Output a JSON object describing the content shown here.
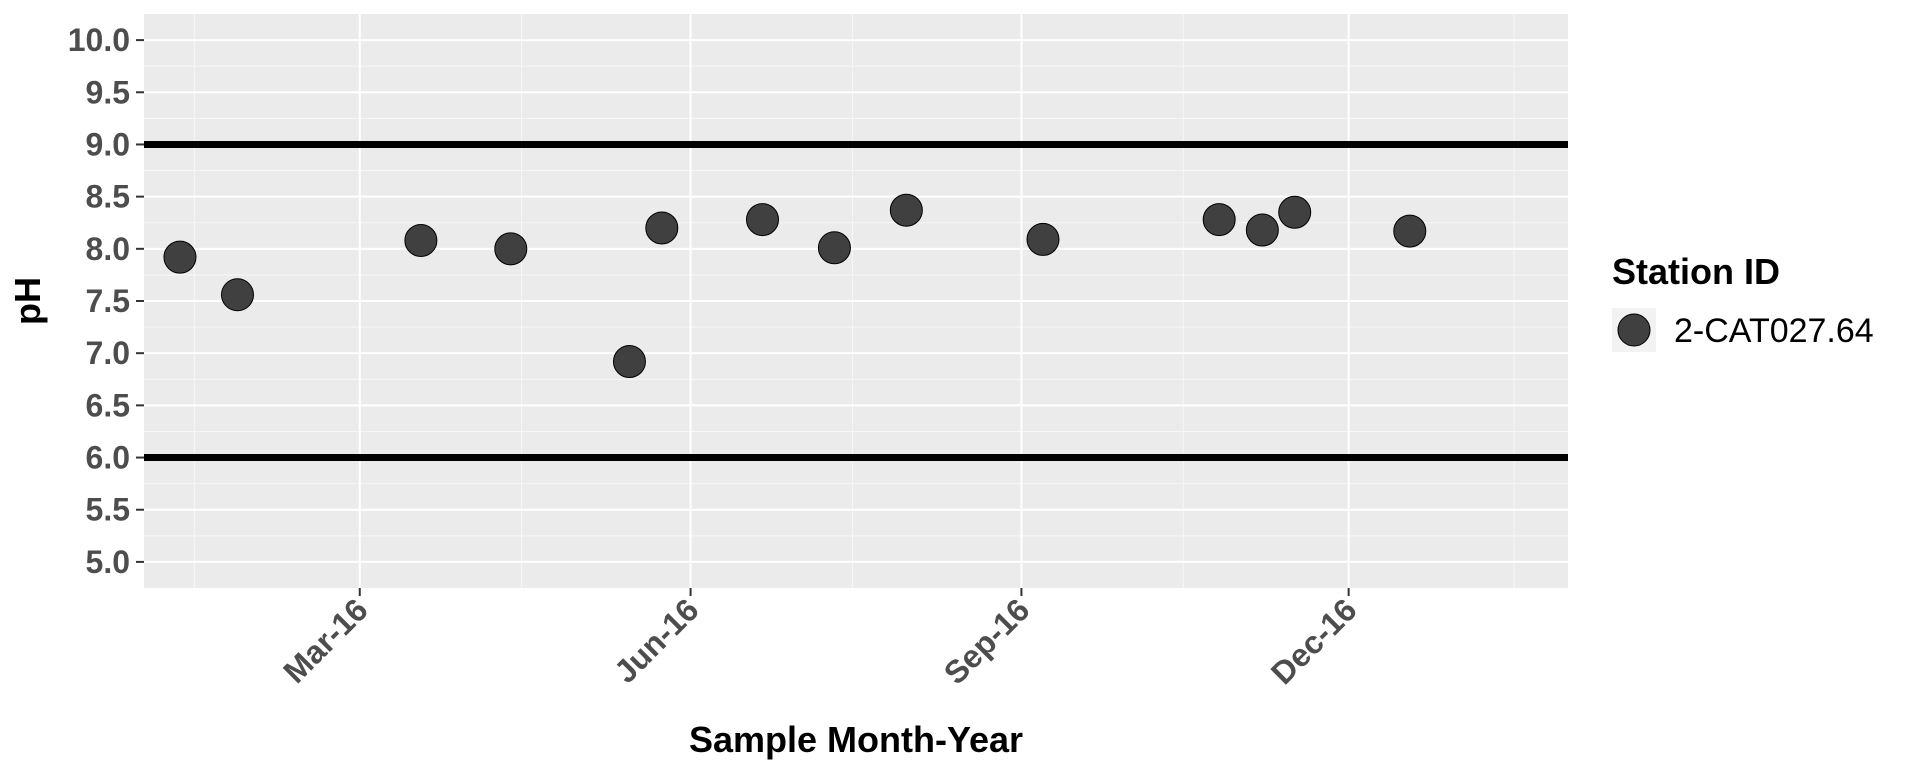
{
  "chart_data": {
    "type": "scatter",
    "xlabel": "Sample Month-Year",
    "ylabel": "pH",
    "x_axis_type": "date",
    "xlim": [
      "2016-01-01",
      "2017-01-31"
    ],
    "ylim": [
      4.75,
      10.25
    ],
    "x_ticks": [
      {
        "date": "2016-03-01",
        "label": "Mar-16"
      },
      {
        "date": "2016-06-01",
        "label": "Jun-16"
      },
      {
        "date": "2016-09-01",
        "label": "Sep-16"
      },
      {
        "date": "2016-12-01",
        "label": "Dec-16"
      }
    ],
    "x_minor_gridlines": [
      "2016-01-15",
      "2016-04-15",
      "2016-07-16",
      "2016-10-16",
      "2017-01-16"
    ],
    "y_ticks": [
      5.0,
      5.5,
      6.0,
      6.5,
      7.0,
      7.5,
      8.0,
      8.5,
      9.0,
      9.5,
      10.0
    ],
    "y_tick_labels": [
      "5.0",
      "5.5",
      "6.0",
      "6.5",
      "7.0",
      "7.5",
      "8.0",
      "8.5",
      "9.0",
      "9.5",
      "10.0"
    ],
    "reference_lines": [
      {
        "axis": "y",
        "value": 9.0
      },
      {
        "axis": "y",
        "value": 6.0
      }
    ],
    "grid": true,
    "background_color": "#ebebeb",
    "point_color": "#404040",
    "legend": {
      "title": "Station ID",
      "position": "right",
      "entries": [
        "2-CAT027.64"
      ]
    },
    "series": [
      {
        "name": "2-CAT027.64",
        "points": [
          {
            "x": "2016-01-11",
            "y": 7.92
          },
          {
            "x": "2016-01-27",
            "y": 7.56
          },
          {
            "x": "2016-03-18",
            "y": 8.08
          },
          {
            "x": "2016-04-12",
            "y": 8.0
          },
          {
            "x": "2016-05-15",
            "y": 6.92
          },
          {
            "x": "2016-05-24",
            "y": 8.2
          },
          {
            "x": "2016-06-21",
            "y": 8.28
          },
          {
            "x": "2016-07-11",
            "y": 8.01
          },
          {
            "x": "2016-07-31",
            "y": 8.37
          },
          {
            "x": "2016-09-07",
            "y": 8.09
          },
          {
            "x": "2016-10-26",
            "y": 8.28
          },
          {
            "x": "2016-11-07",
            "y": 8.18
          },
          {
            "x": "2016-11-16",
            "y": 8.35
          },
          {
            "x": "2016-12-18",
            "y": 8.17
          }
        ]
      }
    ]
  }
}
